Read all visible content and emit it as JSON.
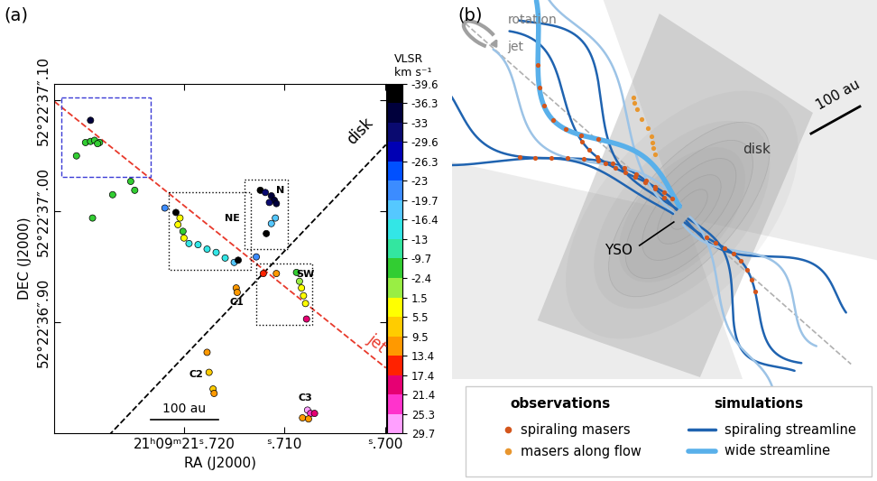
{
  "chart_data": {
    "type": "scatter",
    "panel": "(a)",
    "xlabel": "RA (J2000)",
    "ylabel": "DEC (J2000)",
    "xlim": [
      21.7329,
      21.6999
    ],
    "ylim": [
      36.8,
      37.115
    ],
    "xticks": [
      {
        "value": 21.72,
        "label": "21ʰ09ᵐ21ˢ.720"
      },
      {
        "value": 21.71,
        "label": "ˢ.710"
      },
      {
        "value": 21.7,
        "label": "ˢ.700"
      }
    ],
    "yticks": [
      {
        "value": 37.1,
        "label": "52°22′37″.10"
      },
      {
        "value": 37.0,
        "label": "52°22′37″.00"
      },
      {
        "value": 36.9,
        "label": "52°22′36″.90"
      }
    ],
    "points": {
      "x": [
        21.7293,
        21.7298,
        21.7293,
        21.7289,
        21.7284,
        21.7286,
        21.7307,
        21.7253,
        21.7249,
        21.7271,
        21.7291,
        21.7219,
        21.7208,
        21.7204,
        21.7206,
        21.7201,
        21.72,
        21.7195,
        21.7186,
        21.7177,
        21.7168,
        21.7159,
        21.715,
        21.7146,
        21.7124,
        21.7119,
        21.7113,
        21.711,
        21.7115,
        21.7108,
        21.7109,
        21.7113,
        21.7118,
        21.7128,
        21.7121,
        21.7108,
        21.7088,
        21.7085,
        21.7083,
        21.7081,
        21.7079,
        21.7078,
        21.7148,
        21.7147,
        21.7177,
        21.7175,
        21.7171,
        21.717,
        21.7077,
        21.7074,
        21.707,
        21.7082,
        21.7076
      ],
      "y": [
        37.082,
        37.062,
        37.063,
        37.064,
        37.062,
        37.061,
        37.05,
        37.027,
        37.019,
        37.015,
        36.994,
        37.003,
        36.999,
        36.994,
        36.988,
        36.982,
        36.976,
        36.971,
        36.97,
        36.966,
        36.963,
        36.958,
        36.954,
        36.956,
        37.019,
        37.017,
        37.014,
        37.01,
        37.008,
        37.007,
        36.994,
        36.989,
        36.98,
        36.959,
        36.944,
        36.944,
        36.945,
        36.937,
        36.931,
        36.924,
        36.917,
        36.903,
        36.931,
        36.927,
        36.873,
        36.855,
        36.84,
        36.836,
        36.821,
        36.818,
        36.818,
        36.814,
        36.813
      ],
      "v": [
        -35,
        -5,
        -6,
        -5,
        -4,
        -3,
        -5,
        -5,
        -4,
        -5,
        -6,
        -21,
        -38,
        3,
        4,
        -3,
        2,
        -15,
        -14,
        -15,
        -16,
        -15,
        -19,
        -38,
        -38,
        -33,
        -34,
        -35,
        -31,
        -36,
        -18,
        -17,
        -37,
        -20,
        15,
        10,
        -4,
        0,
        3,
        4,
        2,
        20,
        11,
        10,
        10,
        9,
        8,
        10,
        28,
        22,
        21,
        11,
        12
      ]
    },
    "colorbar": {
      "label": "VLSR\nkm s⁻¹",
      "ticks": [
        -39.6,
        -36.3,
        -33,
        -29.6,
        -26.3,
        -23,
        -19.7,
        -16.4,
        -13,
        -9.7,
        -2.4,
        1.5,
        5.5,
        9.5,
        13.4,
        17.4,
        21.4,
        25.3,
        29.7
      ],
      "colors": [
        "#000000",
        "#00003c",
        "#0a0a70",
        "#0000b4",
        "#0050ff",
        "#3c8cff",
        "#55c8ff",
        "#33e6e6",
        "#33e6a0",
        "#32cd32",
        "#99ee44",
        "#ffff00",
        "#ffcc00",
        "#ff9900",
        "#ff2200",
        "#e60073",
        "#ff33cc",
        "#ffa0ff"
      ]
    },
    "lines": [
      {
        "label": "disk",
        "color": "black",
        "line_style": "dashed",
        "x": [
          21.7275,
          21.6999
        ],
        "y": [
          36.798,
          37.06
        ],
        "label_x": 21.7025,
        "label_y": 37.072
      },
      {
        "label": "jet",
        "color": "#e8392b",
        "line_style": "dashed",
        "x": [
          21.7329,
          21.6999
        ],
        "y": [
          37.099,
          36.859
        ],
        "label_x": 21.7008,
        "label_y": 36.881
      }
    ],
    "boxes": [
      {
        "x": [
          21.7215,
          21.7133
        ],
        "y": [
          37.017,
          36.947
        ],
        "color": "black",
        "line_style": "dotted"
      },
      {
        "x": [
          21.714,
          21.7097
        ],
        "y": [
          37.029,
          36.966
        ],
        "color": "black",
        "line_style": "dotted"
      },
      {
        "x": [
          21.7128,
          21.7072
        ],
        "y": [
          36.953,
          36.898
        ],
        "color": "black",
        "line_style": "dotted"
      },
      {
        "x": [
          21.7322,
          21.7233
        ],
        "y": [
          37.103,
          37.031
        ],
        "color": "#3b3bd6",
        "line_style": "dashed"
      }
    ],
    "labels": [
      {
        "text": "NE",
        "x": 21.7152,
        "y": 36.994
      },
      {
        "text": "N",
        "x": 21.7104,
        "y": 37.019
      },
      {
        "text": "SW",
        "x": 21.7079,
        "y": 36.943
      },
      {
        "text": "C1",
        "x": 21.7147,
        "y": 36.918
      },
      {
        "text": "C2",
        "x": 21.7188,
        "y": 36.853
      },
      {
        "text": "C3",
        "x": 21.7079,
        "y": 36.832
      }
    ],
    "scale_bar": {
      "label": "100 au",
      "x": [
        21.7233,
        21.7166
      ],
      "y": 36.812
    }
  },
  "diagram": {
    "panel": "(b)",
    "rotation": "rotation",
    "jet": "jet",
    "disk": "disk",
    "scale_bar": "100 au",
    "yso": "YSO",
    "key": [
      {
        "title": "observations",
        "items": [
          {
            "label": "spiraling masers",
            "color": "#d4561c"
          },
          {
            "label": "masers along flow",
            "color": "#e8962e"
          }
        ]
      },
      {
        "title": "simulations",
        "items": [
          {
            "label": "spiraling streamline",
            "color": "#1f63b0"
          },
          {
            "label": "wide streamline",
            "color": "#59b0ea"
          }
        ]
      }
    ]
  }
}
